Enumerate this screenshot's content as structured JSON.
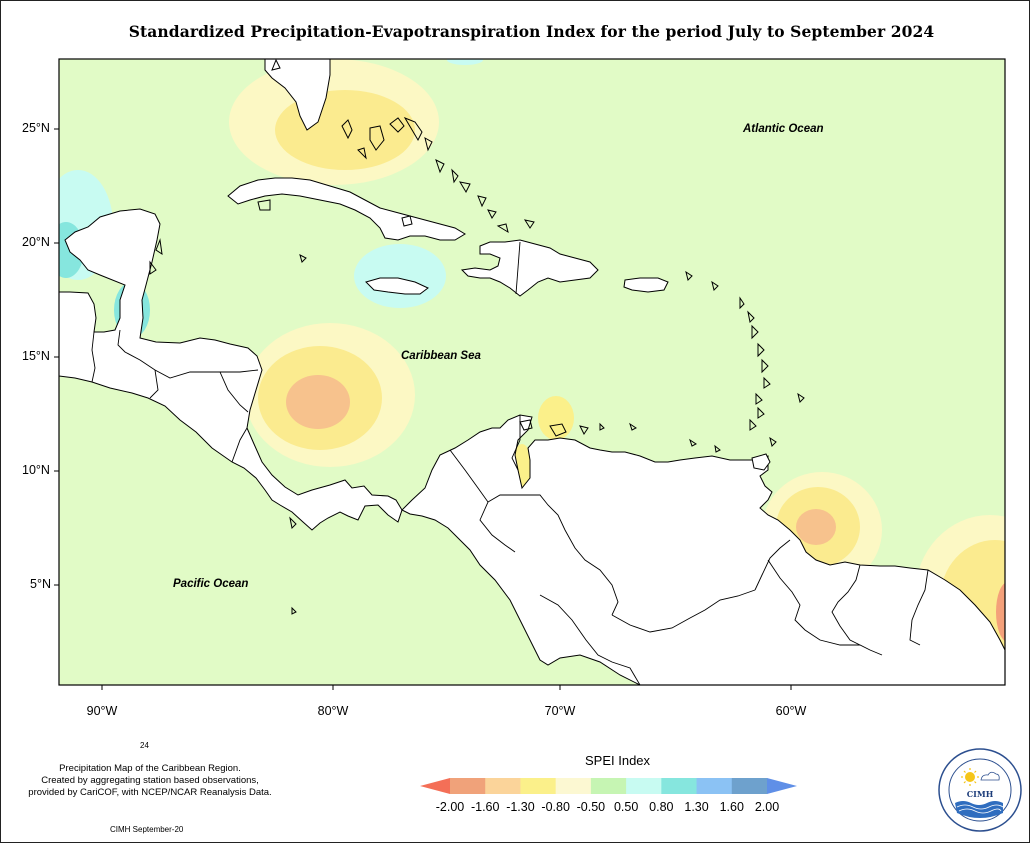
{
  "title": "Standardized Precipitation-Evapotranspiration Index for the period July to September 2024",
  "map": {
    "latitude_labels": [
      "25°N",
      "20°N",
      "15°N",
      "10°N",
      "5°N"
    ],
    "longitude_labels": [
      "90°W",
      "80°W",
      "70°W",
      "60°W"
    ],
    "ocean_labels": {
      "atlantic": "Atlantic Ocean",
      "caribbean": "Caribbean Sea",
      "pacific": "Pacific Ocean"
    },
    "colors": {
      "background": "#e1fbc6",
      "land": "#ffffff",
      "coast": "#000000"
    }
  },
  "footnote": {
    "number": "24",
    "line1": "Precipitation Map of the Caribbean Region.",
    "line2": "Created by aggregating station based observations,",
    "line3": "provided by CariCOF, with NCEP/NCAR Reanalysis Data.",
    "credit": "CIMH September-20"
  },
  "legend": {
    "title": "SPEI Index",
    "ticks": [
      "-2.00",
      "-1.60",
      "-1.30",
      "-0.80",
      "-0.50",
      "0.50",
      "0.80",
      "1.30",
      "1.60",
      "2.00"
    ],
    "colors": [
      "#f46f57",
      "#f0a27a",
      "#fbd49a",
      "#fbf08a",
      "#fcf8d2",
      "#c6f5b3",
      "#c8fbf2",
      "#86e6de",
      "#8bc2f4",
      "#6ea1cd",
      "#5f8fe7"
    ]
  },
  "logo": {
    "text": "CIMH",
    "icon": "sun-cloud-water-logo"
  }
}
